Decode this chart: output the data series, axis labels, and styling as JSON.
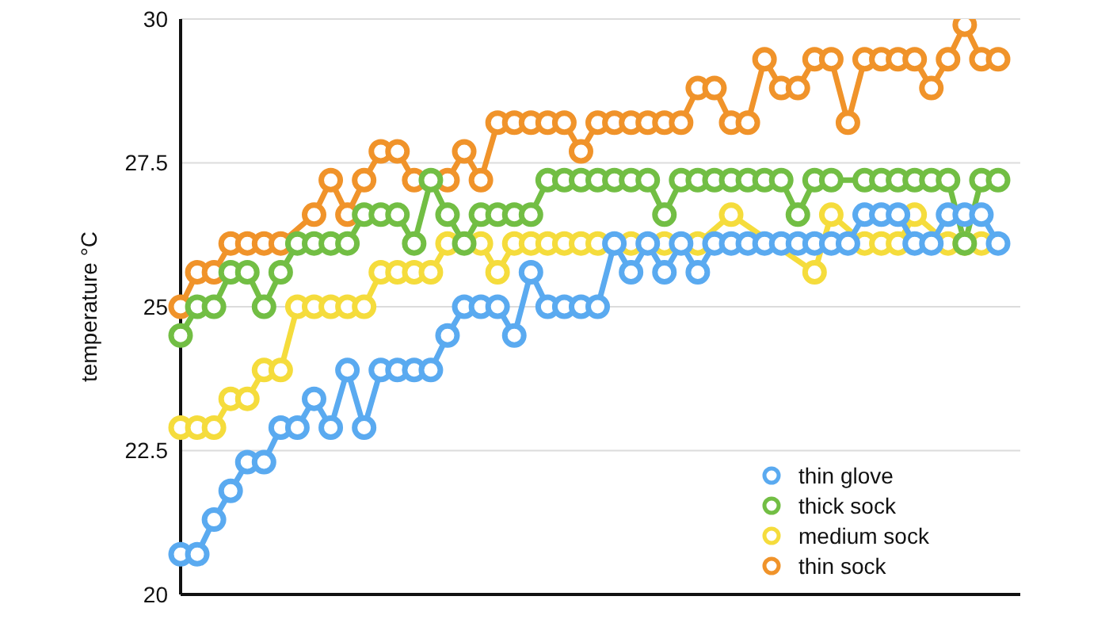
{
  "chart_data": {
    "type": "line",
    "ylabel": "temperature °C",
    "categories": [
      null,
      null,
      null,
      null,
      null,
      null,
      null,
      null,
      null,
      null,
      null,
      null,
      null,
      null,
      null,
      null,
      null,
      null,
      null,
      null,
      null,
      null,
      null,
      null,
      null,
      null,
      null,
      null,
      null,
      null,
      null,
      null,
      null,
      null,
      null,
      null,
      null,
      null,
      null,
      null,
      null,
      null,
      null,
      null,
      null,
      null,
      null,
      null,
      null,
      null
    ],
    "series": [
      {
        "name": "thin glove",
        "color": "#5aaaf0",
        "values": [
          20.7,
          20.7,
          21.3,
          21.8,
          22.3,
          22.3,
          22.9,
          22.9,
          23.4,
          22.9,
          23.9,
          22.9,
          23.9,
          23.9,
          23.9,
          23.9,
          24.5,
          25.0,
          25.0,
          25.0,
          24.5,
          25.6,
          25.0,
          25.0,
          25.0,
          25.0,
          26.1,
          25.6,
          26.1,
          25.6,
          26.1,
          25.6,
          26.1,
          26.1,
          26.1,
          26.1,
          26.1,
          26.1,
          26.1,
          26.1,
          26.1,
          26.6,
          26.6,
          26.6,
          26.1,
          26.1,
          26.6,
          26.6,
          26.6,
          26.1
        ]
      },
      {
        "name": "thick sock",
        "color": "#72be44",
        "values": [
          24.5,
          25.0,
          25.0,
          25.6,
          25.6,
          25.0,
          25.6,
          26.1,
          26.1,
          26.1,
          26.1,
          26.6,
          26.6,
          26.6,
          26.1,
          27.2,
          26.6,
          26.1,
          26.6,
          26.6,
          26.6,
          26.6,
          27.2,
          27.2,
          27.2,
          27.2,
          27.2,
          27.2,
          27.2,
          26.6,
          27.2,
          27.2,
          27.2,
          27.2,
          27.2,
          27.2,
          27.2,
          26.6,
          27.2,
          27.2,
          null,
          27.2,
          27.2,
          27.2,
          27.2,
          27.2,
          27.2,
          26.1,
          27.2,
          27.2
        ]
      },
      {
        "name": "medium sock",
        "color": "#f5dc3c",
        "values": [
          22.9,
          22.9,
          22.9,
          23.4,
          23.4,
          23.9,
          23.9,
          25.0,
          25.0,
          25.0,
          25.0,
          25.0,
          25.6,
          25.6,
          25.6,
          25.6,
          26.1,
          null,
          26.1,
          25.6,
          26.1,
          26.1,
          26.1,
          26.1,
          26.1,
          26.1,
          null,
          26.1,
          null,
          26.1,
          null,
          26.1,
          null,
          26.6,
          null,
          null,
          null,
          null,
          25.6,
          26.6,
          null,
          26.1,
          26.1,
          26.1,
          26.6,
          null,
          26.1,
          26.1,
          26.1,
          null
        ]
      },
      {
        "name": "thin sock",
        "color": "#f0932a",
        "values": [
          25.0,
          25.6,
          25.6,
          26.1,
          26.1,
          26.1,
          26.1,
          null,
          26.6,
          27.2,
          26.6,
          27.2,
          27.7,
          27.7,
          27.2,
          null,
          27.2,
          27.7,
          27.2,
          28.2,
          28.2,
          28.2,
          28.2,
          28.2,
          27.7,
          28.2,
          28.2,
          28.2,
          28.2,
          28.2,
          28.2,
          28.8,
          28.8,
          28.2,
          28.2,
          29.3,
          28.8,
          28.8,
          29.3,
          29.3,
          28.2,
          29.3,
          29.3,
          29.3,
          29.3,
          28.8,
          29.3,
          29.9,
          29.3,
          29.3
        ]
      }
    ],
    "ylim": [
      20,
      30
    ],
    "yticks": [
      20,
      22.5,
      25,
      27.5,
      30
    ],
    "grid": "y",
    "legend": "bottom right",
    "marker": "circle",
    "line_style": "solid"
  }
}
